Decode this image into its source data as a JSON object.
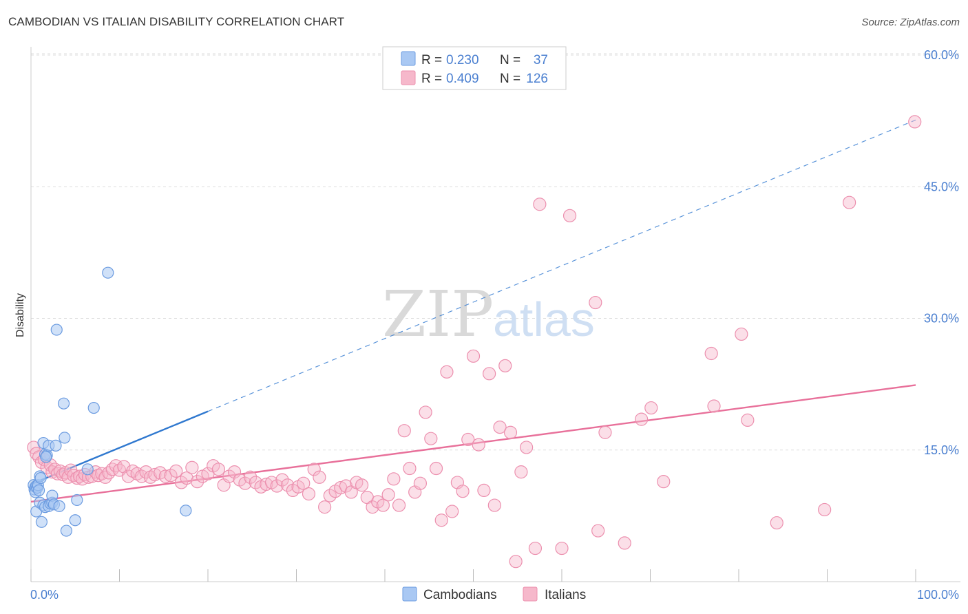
{
  "header": {
    "title": "CAMBODIAN VS ITALIAN DISABILITY CORRELATION CHART",
    "source": "Source: ZipAtlas.com"
  },
  "watermark": {
    "zip": "ZIP",
    "atlas": "atlas"
  },
  "colors": {
    "blue_fill": "#a9c8f3",
    "blue_stroke": "#6b9be0",
    "blue_line": "#2f78cf",
    "pink_fill": "#f6b8cb",
    "pink_stroke": "#ec8fae",
    "pink_line": "#e8709a",
    "tick_label": "#4a7fd0",
    "grid": "#dddddd"
  },
  "legend": {
    "rows": [
      {
        "r_label": "R =",
        "r_value": "0.230",
        "n_label": "N =",
        "n_value": "37"
      },
      {
        "r_label": "R =",
        "r_value": "0.409",
        "n_label": "N =",
        "n_value": "126"
      }
    ]
  },
  "bottom_legend": {
    "items": [
      "Cambodians",
      "Italians"
    ]
  },
  "chart_data": {
    "type": "scatter",
    "title": "CAMBODIAN VS ITALIAN DISABILITY CORRELATION CHART",
    "xlabel": "",
    "ylabel": "Disability",
    "xlim": [
      0,
      100
    ],
    "ylim": [
      0,
      63
    ],
    "x_tick_labels": [
      "0.0%",
      "100.0%"
    ],
    "y_ticks": [
      15,
      30,
      45,
      60
    ],
    "y_tick_labels": [
      "15.0%",
      "30.0%",
      "45.0%",
      "60.0%"
    ],
    "grid": true,
    "legend_position": "top-center",
    "series": [
      {
        "name": "Cambodians",
        "trend": {
          "x0": 0,
          "y0": 11.1,
          "x1_solid": 20,
          "y1_solid": 19.4,
          "x1_dashed": 100,
          "y1_dashed": 52.6
        },
        "points": [
          [
            0.3,
            11.0
          ],
          [
            0.4,
            10.5
          ],
          [
            0.5,
            10.8
          ],
          [
            0.6,
            10.9
          ],
          [
            0.5,
            10.2
          ],
          [
            0.7,
            10.7
          ],
          [
            0.8,
            11.0
          ],
          [
            0.9,
            10.4
          ],
          [
            0.6,
            8.0
          ],
          [
            1.0,
            12.0
          ],
          [
            1.0,
            9.0
          ],
          [
            1.2,
            6.8
          ],
          [
            1.4,
            8.7
          ],
          [
            1.4,
            15.8
          ],
          [
            1.6,
            8.5
          ],
          [
            1.6,
            14.5
          ],
          [
            1.8,
            14.4
          ],
          [
            2.0,
            15.5
          ],
          [
            2.0,
            8.6
          ],
          [
            2.2,
            8.9
          ],
          [
            2.4,
            9.0
          ],
          [
            2.4,
            9.8
          ],
          [
            2.6,
            8.8
          ],
          [
            2.8,
            15.5
          ],
          [
            2.9,
            28.7
          ],
          [
            3.2,
            8.6
          ],
          [
            3.7,
            20.3
          ],
          [
            3.8,
            16.4
          ],
          [
            4.0,
            5.8
          ],
          [
            5.0,
            7.0
          ],
          [
            5.2,
            9.3
          ],
          [
            6.4,
            12.8
          ],
          [
            7.1,
            19.8
          ],
          [
            8.7,
            35.2
          ],
          [
            17.5,
            8.1
          ],
          [
            1.1,
            11.8
          ],
          [
            1.7,
            14.2
          ]
        ]
      },
      {
        "name": "Italians",
        "trend": {
          "x0": 0,
          "y0": 9.1,
          "x1": 100,
          "y1": 22.4
        },
        "points": [
          [
            0.3,
            15.3
          ],
          [
            0.6,
            14.6
          ],
          [
            0.9,
            14.2
          ],
          [
            1.2,
            13.6
          ],
          [
            1.5,
            13.9
          ],
          [
            1.8,
            13.0
          ],
          [
            2.2,
            13.3
          ],
          [
            2.4,
            12.5
          ],
          [
            2.7,
            12.8
          ],
          [
            3.0,
            12.3
          ],
          [
            3.3,
            12.6
          ],
          [
            3.6,
            12.2
          ],
          [
            3.9,
            12.4
          ],
          [
            4.2,
            11.9
          ],
          [
            4.5,
            12.7
          ],
          [
            4.8,
            12.1
          ],
          [
            5.2,
            11.8
          ],
          [
            5.5,
            12.0
          ],
          [
            5.8,
            11.7
          ],
          [
            6.1,
            12.2
          ],
          [
            6.5,
            11.9
          ],
          [
            6.9,
            12.0
          ],
          [
            7.3,
            12.5
          ],
          [
            7.6,
            12.1
          ],
          [
            8.0,
            12.3
          ],
          [
            8.4,
            11.9
          ],
          [
            8.8,
            12.4
          ],
          [
            9.2,
            12.8
          ],
          [
            9.6,
            13.2
          ],
          [
            10.0,
            12.7
          ],
          [
            10.5,
            13.1
          ],
          [
            11.0,
            12.0
          ],
          [
            11.5,
            12.6
          ],
          [
            12.0,
            12.3
          ],
          [
            12.5,
            12.0
          ],
          [
            13.0,
            12.5
          ],
          [
            13.5,
            11.9
          ],
          [
            14.0,
            12.2
          ],
          [
            14.6,
            12.4
          ],
          [
            15.2,
            12.0
          ],
          [
            15.8,
            12.1
          ],
          [
            16.4,
            12.6
          ],
          [
            17.0,
            11.3
          ],
          [
            17.6,
            11.8
          ],
          [
            18.2,
            13.0
          ],
          [
            18.8,
            11.4
          ],
          [
            19.4,
            12.0
          ],
          [
            20.0,
            12.3
          ],
          [
            20.6,
            13.2
          ],
          [
            21.2,
            12.8
          ],
          [
            21.8,
            11.0
          ],
          [
            22.4,
            12.0
          ],
          [
            23.0,
            12.5
          ],
          [
            23.6,
            11.6
          ],
          [
            24.2,
            11.2
          ],
          [
            24.8,
            11.9
          ],
          [
            25.4,
            11.3
          ],
          [
            26.0,
            10.8
          ],
          [
            26.6,
            11.1
          ],
          [
            27.2,
            11.3
          ],
          [
            27.8,
            10.9
          ],
          [
            28.4,
            11.6
          ],
          [
            29.0,
            11.0
          ],
          [
            29.6,
            10.4
          ],
          [
            30.2,
            10.8
          ],
          [
            30.8,
            11.2
          ],
          [
            31.4,
            10.0
          ],
          [
            32.0,
            12.8
          ],
          [
            32.6,
            11.9
          ],
          [
            33.2,
            8.5
          ],
          [
            33.8,
            9.8
          ],
          [
            34.4,
            10.3
          ],
          [
            35.0,
            10.7
          ],
          [
            35.6,
            10.9
          ],
          [
            36.2,
            10.2
          ],
          [
            36.8,
            11.3
          ],
          [
            37.4,
            11.0
          ],
          [
            38.0,
            9.6
          ],
          [
            38.6,
            8.5
          ],
          [
            39.2,
            9.1
          ],
          [
            39.8,
            8.7
          ],
          [
            40.4,
            9.9
          ],
          [
            41.0,
            11.7
          ],
          [
            41.6,
            8.7
          ],
          [
            42.2,
            17.2
          ],
          [
            42.8,
            12.9
          ],
          [
            43.4,
            10.2
          ],
          [
            44.0,
            11.2
          ],
          [
            44.6,
            19.3
          ],
          [
            45.2,
            16.3
          ],
          [
            45.8,
            12.9
          ],
          [
            46.4,
            7.0
          ],
          [
            47.0,
            23.9
          ],
          [
            47.6,
            8.0
          ],
          [
            48.2,
            11.3
          ],
          [
            48.8,
            10.3
          ],
          [
            49.4,
            16.2
          ],
          [
            50.0,
            25.7
          ],
          [
            50.6,
            15.6
          ],
          [
            51.2,
            10.4
          ],
          [
            51.8,
            23.7
          ],
          [
            52.4,
            8.7
          ],
          [
            53.0,
            17.6
          ],
          [
            53.6,
            24.6
          ],
          [
            54.2,
            17.0
          ],
          [
            54.8,
            2.3
          ],
          [
            55.4,
            12.5
          ],
          [
            56.0,
            15.3
          ],
          [
            57.0,
            3.8
          ],
          [
            57.5,
            43.0
          ],
          [
            60.0,
            3.8
          ],
          [
            60.9,
            41.7
          ],
          [
            63.8,
            31.8
          ],
          [
            64.1,
            5.8
          ],
          [
            64.9,
            17.0
          ],
          [
            67.1,
            4.4
          ],
          [
            69.0,
            18.5
          ],
          [
            70.1,
            19.8
          ],
          [
            71.5,
            11.4
          ],
          [
            76.9,
            26.0
          ],
          [
            77.2,
            20.0
          ],
          [
            80.3,
            28.2
          ],
          [
            81.0,
            18.4
          ],
          [
            84.3,
            6.7
          ],
          [
            89.7,
            8.2
          ],
          [
            92.5,
            43.2
          ],
          [
            99.9,
            52.4
          ]
        ]
      }
    ]
  }
}
